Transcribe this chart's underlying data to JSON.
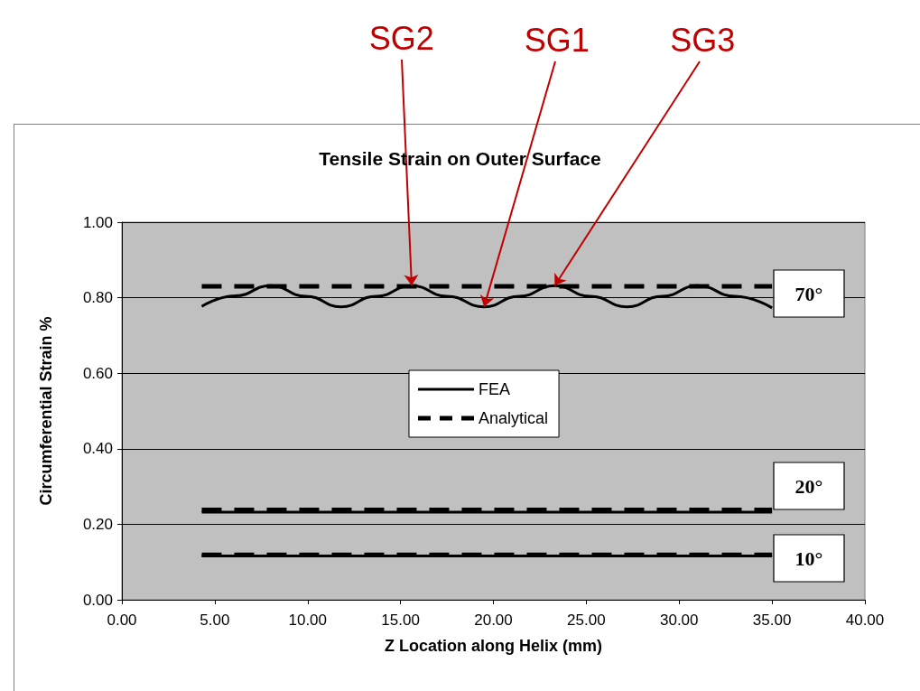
{
  "chart_data": {
    "type": "line",
    "title": "Tensile Strain on Outer Surface",
    "xlabel": "Z Location along Helix (mm)",
    "ylabel": "Circumferential Strain %",
    "xlim": [
      0,
      40
    ],
    "xticks": [
      {
        "value": 0,
        "label": "0.00"
      },
      {
        "value": 5,
        "label": "5.00"
      },
      {
        "value": 10,
        "label": "10.00"
      },
      {
        "value": 15,
        "label": "15.00"
      },
      {
        "value": 20,
        "label": "20.00"
      },
      {
        "value": 25,
        "label": "25.00"
      },
      {
        "value": 30,
        "label": "30.00"
      },
      {
        "value": 35,
        "label": "35.00"
      },
      {
        "value": 40,
        "label": "40.00"
      }
    ],
    "ylim": [
      0,
      1
    ],
    "yticks": [
      {
        "value": 0,
        "label": "0.00"
      },
      {
        "value": 0.2,
        "label": "0.20"
      },
      {
        "value": 0.4,
        "label": "0.40"
      },
      {
        "value": 0.6,
        "label": "0.60"
      },
      {
        "value": 0.8,
        "label": "0.80"
      },
      {
        "value": 1,
        "label": "1.00"
      }
    ],
    "grid": "y",
    "legend": "center",
    "marker": "none",
    "series": [
      {
        "name": "FEA",
        "color": "#000000",
        "line_style": "solid",
        "x": [
          4.3,
          6.1,
          8.0,
          9.9,
          11.8,
          13.7,
          15.6,
          17.5,
          19.5,
          21.4,
          23.3,
          25.2,
          27.2,
          29.1,
          31.0,
          33.0,
          35.0
        ],
        "values": [
          0.777,
          0.805,
          0.832,
          0.804,
          0.776,
          0.804,
          0.832,
          0.804,
          0.776,
          0.804,
          0.832,
          0.804,
          0.776,
          0.804,
          0.832,
          0.804,
          0.773
        ]
      },
      {
        "name": "Analytical",
        "color": "#000000",
        "line_style": "dashed",
        "x": [
          4.3,
          35.0
        ],
        "values": [
          0.83,
          0.83
        ]
      },
      {
        "color": "#000000",
        "line_style": "solid",
        "x": [
          4.3,
          35.0
        ],
        "values": [
          0.232,
          0.232
        ]
      },
      {
        "color": "#000000",
        "line_style": "dashed",
        "x": [
          4.3,
          35.0
        ],
        "values": [
          0.238,
          0.238
        ]
      },
      {
        "color": "#000000",
        "line_style": "solid",
        "x": [
          4.3,
          35.0
        ],
        "values": [
          0.116,
          0.116
        ]
      },
      {
        "color": "#000000",
        "line_style": "dashed",
        "x": [
          4.3,
          35.0
        ],
        "values": [
          0.119,
          0.119
        ]
      }
    ],
    "annotations": [
      {
        "text": "SG2",
        "x": 15.6,
        "y": 0.832
      },
      {
        "text": "SG1",
        "x": 19.5,
        "y": 0.776
      },
      {
        "text": "SG3",
        "x": 23.3,
        "y": 0.832
      },
      "70°",
      "20°",
      "10°"
    ]
  }
}
